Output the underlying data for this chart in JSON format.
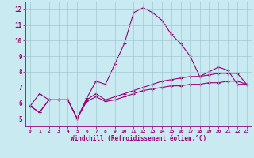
{
  "xlabel": "Windchill (Refroidissement éolien,°C)",
  "bg_color": "#c8eaf0",
  "grid_color": "#a0c8d8",
  "line_color": "#990077",
  "xlim": [
    -0.5,
    23.5
  ],
  "ylim": [
    4.5,
    12.5
  ],
  "xticks": [
    0,
    1,
    2,
    3,
    4,
    5,
    6,
    7,
    8,
    9,
    10,
    11,
    12,
    13,
    14,
    15,
    16,
    17,
    18,
    19,
    20,
    21,
    22,
    23
  ],
  "yticks": [
    5,
    6,
    7,
    8,
    9,
    10,
    11,
    12
  ],
  "series1_x": [
    0,
    1,
    2,
    3,
    4,
    5,
    6,
    7,
    8,
    9,
    10,
    11,
    12,
    13,
    14,
    15,
    16,
    17,
    18,
    19,
    20,
    21,
    22,
    23
  ],
  "series1_y": [
    5.8,
    6.6,
    6.2,
    6.2,
    6.2,
    5.0,
    6.3,
    7.4,
    7.2,
    8.5,
    9.8,
    11.8,
    12.1,
    11.8,
    11.3,
    10.4,
    9.8,
    9.0,
    7.7,
    8.0,
    8.3,
    8.1,
    7.2,
    7.2
  ],
  "series2_x": [
    0,
    1,
    2,
    3,
    4,
    5,
    6,
    7,
    8,
    9,
    10,
    11,
    12,
    13,
    14,
    15,
    16,
    17,
    18,
    19,
    20,
    21,
    22,
    23
  ],
  "series2_y": [
    5.8,
    5.4,
    6.2,
    6.2,
    6.2,
    5.0,
    6.2,
    6.6,
    6.2,
    6.4,
    6.6,
    6.8,
    7.0,
    7.2,
    7.4,
    7.5,
    7.6,
    7.7,
    7.7,
    7.8,
    7.9,
    7.9,
    7.9,
    7.2
  ],
  "series3_x": [
    0,
    1,
    2,
    3,
    4,
    5,
    6,
    7,
    8,
    9,
    10,
    11,
    12,
    13,
    14,
    15,
    16,
    17,
    18,
    19,
    20,
    21,
    22,
    23
  ],
  "series3_y": [
    5.8,
    5.4,
    6.2,
    6.2,
    6.2,
    5.0,
    6.1,
    6.4,
    6.1,
    6.2,
    6.4,
    6.6,
    6.8,
    6.9,
    7.0,
    7.1,
    7.1,
    7.2,
    7.2,
    7.3,
    7.3,
    7.4,
    7.4,
    7.2
  ],
  "marker": "+",
  "markersize": 3,
  "linewidth": 0.8
}
